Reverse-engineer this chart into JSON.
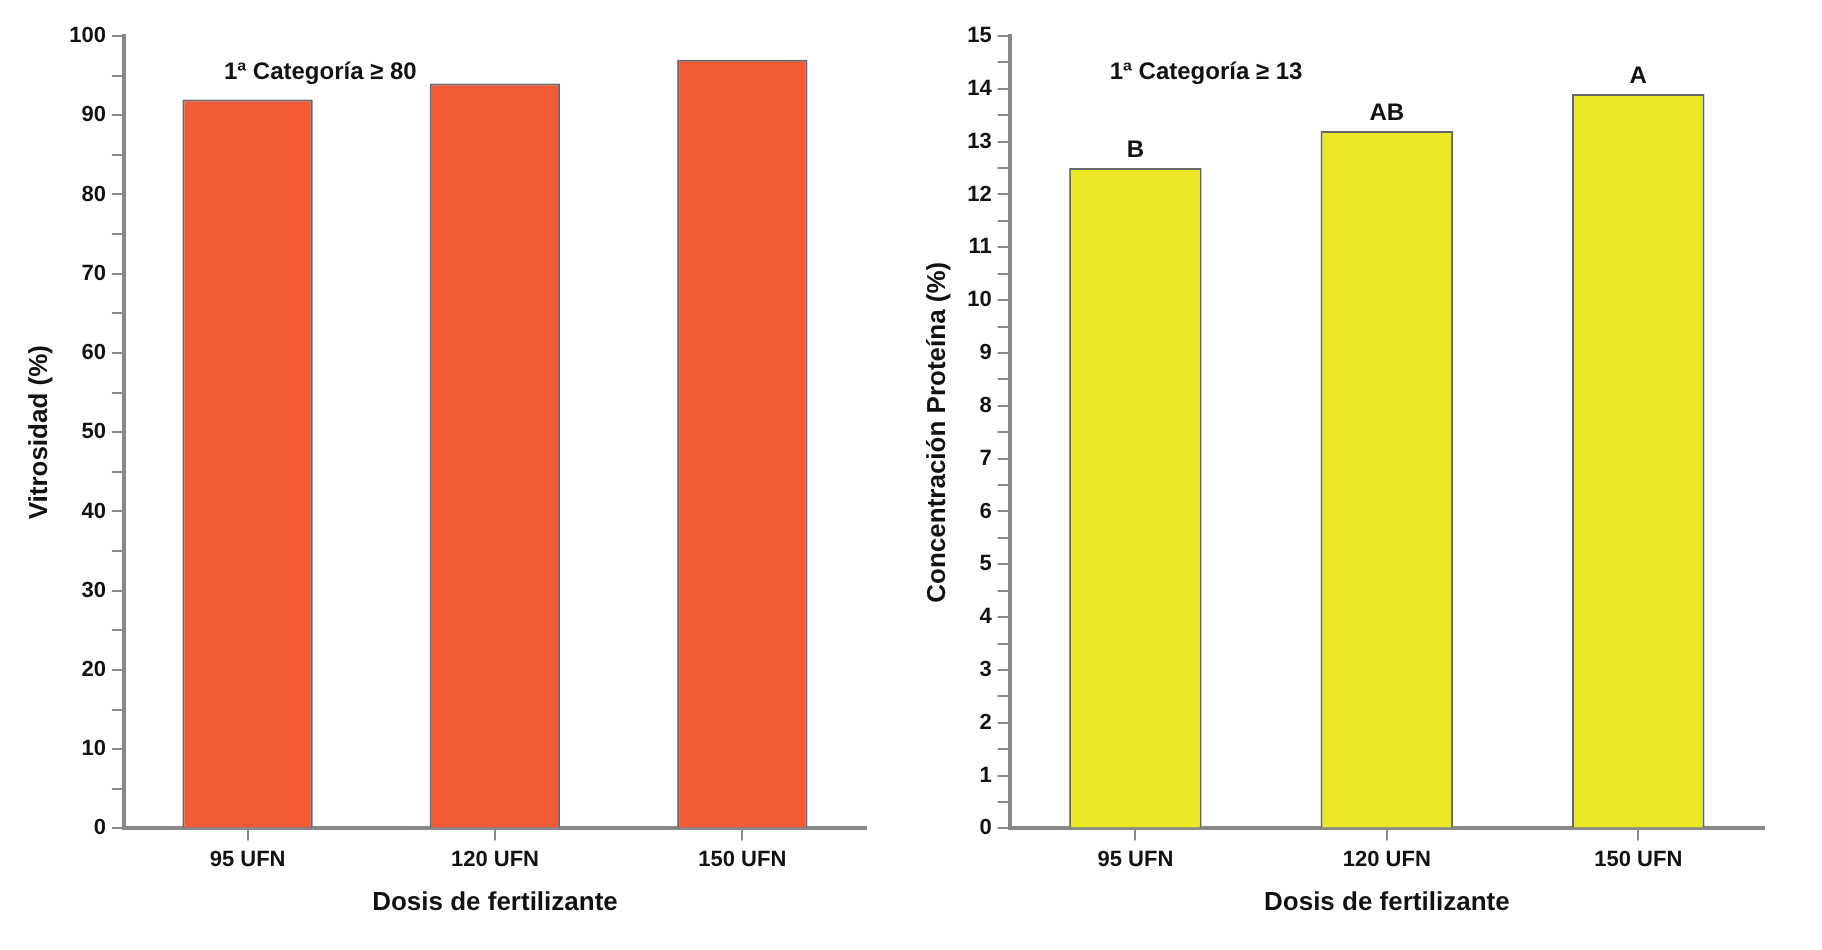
{
  "chart_data": [
    {
      "type": "bar",
      "ylabel": "Vitrosidad (%)",
      "xlabel": "Dosis de fertilizante",
      "categories": [
        "95 UFN",
        "120 UFN",
        "150 UFN"
      ],
      "values": [
        92,
        94,
        97
      ],
      "color": "#f05a35",
      "ylim": [
        0,
        100
      ],
      "yticks": [
        0,
        {
          "value": 5,
          "label": null
        },
        10,
        {
          "value": 15,
          "label": null
        },
        20,
        {
          "value": 25,
          "label": null
        },
        30,
        {
          "value": 35,
          "label": null
        },
        40,
        {
          "value": 45,
          "label": null
        },
        50,
        {
          "value": 55,
          "label": null
        },
        60,
        {
          "value": 65,
          "label": null
        },
        70,
        {
          "value": 75,
          "label": null
        },
        80,
        {
          "value": 85,
          "label": null
        },
        90,
        {
          "value": 95,
          "label": null
        },
        100
      ],
      "grid": false,
      "legend": false,
      "annotations": [
        "1ª Categoría ≥ 80"
      ]
    },
    {
      "type": "bar",
      "ylabel": "Concentración Proteína (%)",
      "xlabel": "Dosis de fertilizante",
      "categories": [
        "95 UFN",
        "120 UFN",
        "150 UFN"
      ],
      "values": [
        12.5,
        13.2,
        13.9
      ],
      "color": "#ece826",
      "ylim": [
        0,
        15
      ],
      "yticks": [
        0,
        {
          "value": 0.5,
          "label": null
        },
        1,
        {
          "value": 1.5,
          "label": null
        },
        2,
        {
          "value": 2.5,
          "label": null
        },
        3,
        {
          "value": 3.5,
          "label": null
        },
        4,
        {
          "value": 4.5,
          "label": null
        },
        5,
        {
          "value": 5.5,
          "label": null
        },
        6,
        {
          "value": 6.5,
          "label": null
        },
        7,
        {
          "value": 7.5,
          "label": null
        },
        8,
        {
          "value": 8.5,
          "label": null
        },
        9,
        {
          "value": 9.5,
          "label": null
        },
        10,
        {
          "value": 10.5,
          "label": null
        },
        11,
        {
          "value": 11.5,
          "label": null
        },
        12,
        {
          "value": 12.5,
          "label": null
        },
        13,
        {
          "value": 13.5,
          "label": null
        },
        14,
        {
          "value": 14.5,
          "label": null
        },
        15
      ],
      "grid": false,
      "legend": false,
      "annotations": [
        "1ª Categoría ≥ 13",
        {
          "text": "B",
          "x": "95 UFN",
          "y": 12.5
        },
        {
          "text": "AB",
          "x": "120 UFN",
          "y": 13.2
        },
        {
          "text": "A",
          "x": "150 UFN",
          "y": 13.9
        }
      ]
    }
  ]
}
